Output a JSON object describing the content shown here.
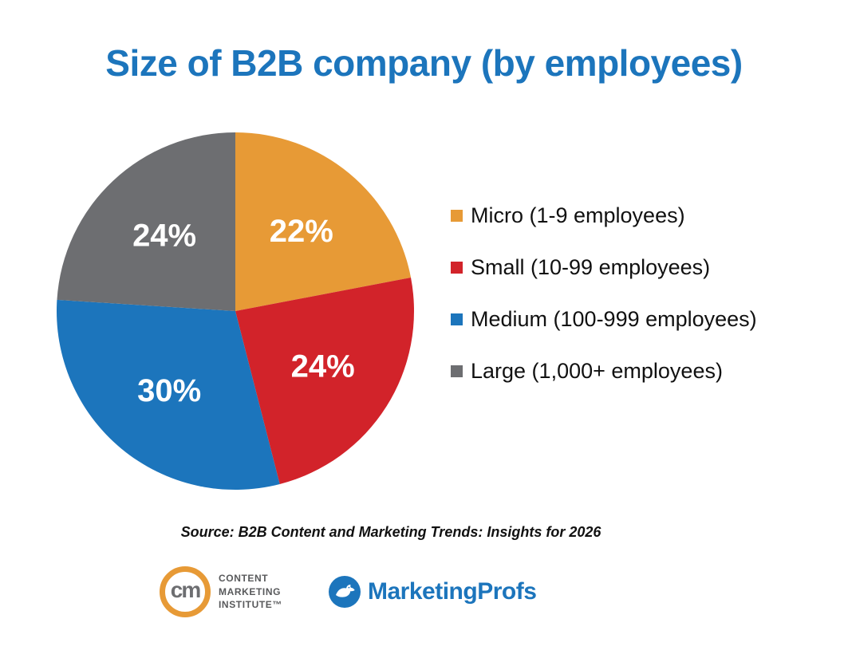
{
  "chart_data": {
    "type": "pie",
    "title": "Size of B2B company (by employees)",
    "legend_position": "right",
    "start_angle": "top",
    "direction": "clockwise",
    "slices": [
      {
        "label": "Micro (1-9 employees)",
        "value": 22,
        "data_label": "22%",
        "color": "#E79A36"
      },
      {
        "label": "Small (10-99 employees)",
        "value": 24,
        "data_label": "24%",
        "color": "#D2232A"
      },
      {
        "label": "Medium (100-999 employees)",
        "value": 30,
        "data_label": "30%",
        "color": "#1C75BC"
      },
      {
        "label": "Large (1,000+ employees)",
        "value": 24,
        "data_label": "24%",
        "color": "#6D6E71"
      }
    ]
  },
  "source": {
    "text": "Source: B2B Content and Marketing Trends: Insights for 2026"
  },
  "footer": {
    "cmi_logo": {
      "monogram": "cm",
      "line1": "CONTENT",
      "line2": "MARKETING",
      "line3": "INSTITUTE™"
    },
    "marketingprofs_logo": {
      "text": "MarketingProfs"
    }
  },
  "colors": {
    "title": "#1C75BC",
    "legend_text": "#111111",
    "slice_label": "#FFFFFF",
    "background": "#FFFFFF"
  }
}
